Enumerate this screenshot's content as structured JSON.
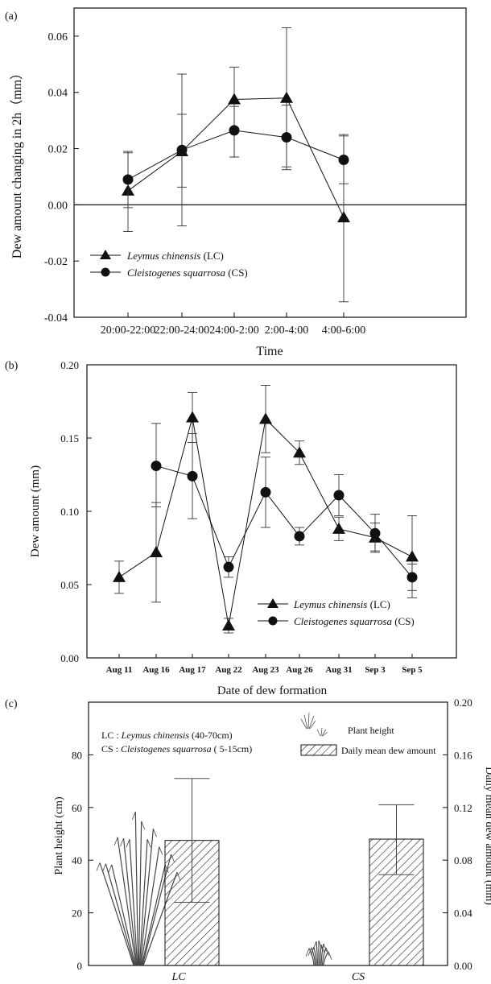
{
  "chart_data": [
    {
      "panel_label": "(a)",
      "type": "line",
      "xlabel": "Time",
      "ylabel": "Dew amount changing in 2h（mm）",
      "categories": [
        "20:00-22:00",
        "22:00-24:00",
        "24:00-2:00",
        "2:00-4:00",
        "4:00-6:00"
      ],
      "ylim": [
        -0.04,
        0.07
      ],
      "yticks": [
        "-0.04",
        "-0.02",
        "0.00",
        "0.02",
        "0.04",
        "0.06"
      ],
      "reference_line": 0,
      "legend_position": "lower-left",
      "series": [
        {
          "name": "Leymus chinensis",
          "suffix": " (LC)",
          "marker": "triangle",
          "values": [
            0.005,
            0.019,
            0.0375,
            0.038,
            -0.0045
          ],
          "err_low": [
            -0.0095,
            0.0063,
            0.017,
            0.0125,
            -0.0345
          ],
          "err_high": [
            0.0185,
            0.0322,
            0.049,
            0.063,
            0.0245
          ]
        },
        {
          "name": "Cleistogenes squarrosa",
          "suffix": " (CS)",
          "marker": "circle",
          "values": [
            0.009,
            0.0195,
            0.0265,
            0.024,
            0.016
          ],
          "err_low": [
            -0.001,
            -0.0075,
            0.017,
            0.0135,
            0.0075
          ],
          "err_high": [
            0.019,
            0.0465,
            0.035,
            0.0355,
            0.025
          ]
        }
      ]
    },
    {
      "panel_label": "(b)",
      "type": "line",
      "xlabel": "Date of dew formation",
      "ylabel": "Dew amount (mm)",
      "categories": [
        "Aug 11",
        "Aug 16",
        "Aug 17",
        "Aug 22",
        "Aug 23",
        "Aug 26",
        "Aug 31",
        "Sep 3",
        "Sep 5"
      ],
      "ylim": [
        0,
        0.2
      ],
      "yticks": [
        "0.00",
        "0.05",
        "0.10",
        "0.15",
        "0.20"
      ],
      "legend_position": "lower-right",
      "series": [
        {
          "name": "Leymus chinensis",
          "suffix": " (LC)",
          "marker": "triangle",
          "values": [
            0.055,
            0.072,
            0.164,
            0.022,
            0.163,
            0.14,
            0.088,
            0.082,
            0.069
          ],
          "err_low": [
            0.044,
            0.038,
            0.147,
            0.017,
            0.14,
            0.132,
            0.08,
            0.072,
            0.041
          ],
          "err_high": [
            0.066,
            0.106,
            0.181,
            0.027,
            0.186,
            0.148,
            0.096,
            0.092,
            0.097
          ]
        },
        {
          "name": "Cleistogenes squarrosa",
          "suffix": " (CS)",
          "marker": "circle",
          "values": [
            null,
            0.131,
            0.124,
            0.062,
            0.113,
            0.083,
            0.111,
            0.085,
            0.055
          ],
          "err_low": [
            null,
            0.103,
            0.095,
            0.055,
            0.089,
            0.077,
            0.097,
            0.073,
            0.046
          ],
          "err_high": [
            null,
            0.16,
            0.153,
            0.069,
            0.137,
            0.089,
            0.125,
            0.098,
            0.064
          ]
        }
      ]
    },
    {
      "panel_label": "(c)",
      "type": "bar",
      "categories": [
        "LC",
        "CS"
      ],
      "ylabel_left": "Plant height (cm)",
      "ylabel_right": "Daily mean dew amount (mm)",
      "ylim_left": [
        0,
        100
      ],
      "ylim_right": [
        0,
        0.2
      ],
      "yticks_left": [
        "0",
        "20",
        "40",
        "60",
        "80"
      ],
      "yticks_right": [
        "0.00",
        "0.04",
        "0.08",
        "0.12",
        "0.16",
        "0.20"
      ],
      "plant_height_cm": [
        60,
        10
      ],
      "series": [
        {
          "name": "Daily mean dew amount",
          "axis": "right",
          "pattern": "hatched",
          "values": [
            0.095,
            0.096
          ],
          "err_low": [
            0.048,
            0.069
          ],
          "err_high": [
            0.142,
            0.122
          ]
        }
      ],
      "legend": {
        "plant_height": "Plant height",
        "dew": "Daily mean dew amount"
      },
      "notes": [
        {
          "prefix": "LC : ",
          "species": "Leymus chinensis",
          "range": " (40-70cm)"
        },
        {
          "prefix": "CS : ",
          "species": "Cleistogenes squarrosa",
          "range": " ( 5-15cm)"
        }
      ]
    }
  ]
}
